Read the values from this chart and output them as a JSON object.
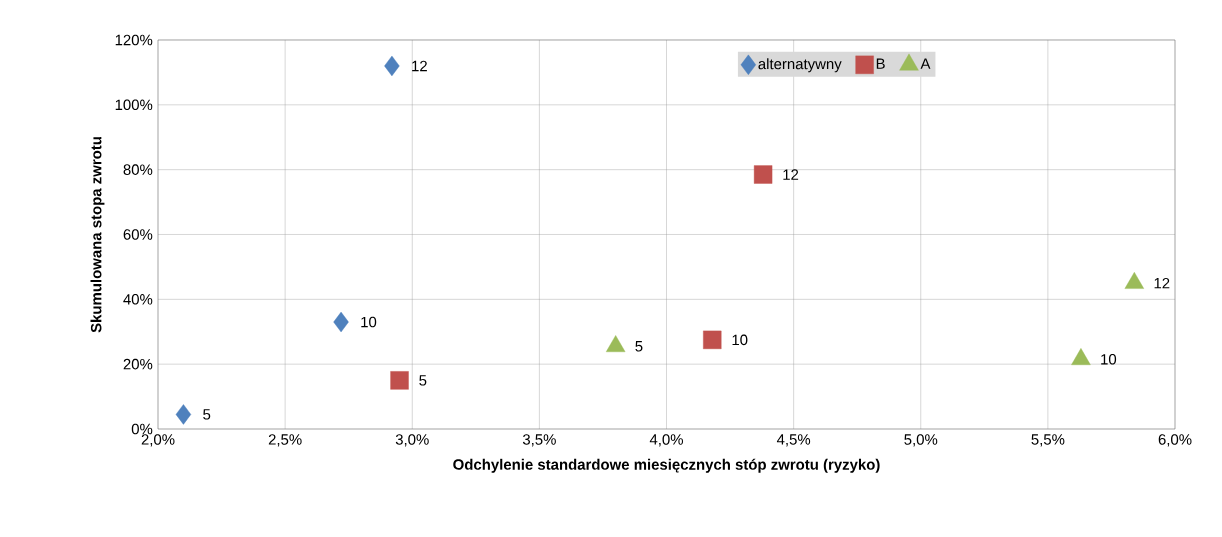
{
  "chart_data": {
    "type": "scatter",
    "xlabel": "Odchylenie standardowe miesięcznych stóp zwrotu (ryzyko)",
    "ylabel": "Skumulowana stopa zwrotu",
    "series": [
      {
        "name": "alternatywny",
        "color": "#4f81bd",
        "marker": "diamond",
        "x": [
          2.1,
          2.72,
          2.92
        ],
        "values": [
          4.5,
          33,
          112
        ]
      },
      {
        "name": "B",
        "color": "#c0504d",
        "marker": "square",
        "x": [
          2.95,
          4.18,
          4.38
        ],
        "values": [
          15,
          27.5,
          78.5
        ]
      },
      {
        "name": "A",
        "color": "#9bbb59",
        "marker": "triangle",
        "x": [
          3.8,
          5.63,
          5.84
        ],
        "values": [
          25.5,
          21.5,
          45
        ]
      }
    ],
    "annotations": [
      {
        "text": "5",
        "x": 2.1,
        "y": 4.5
      },
      {
        "text": "10",
        "x": 2.72,
        "y": 33
      },
      {
        "text": "12",
        "x": 2.92,
        "y": 112
      },
      {
        "text": "5",
        "x": 2.95,
        "y": 15
      },
      {
        "text": "10",
        "x": 4.18,
        "y": 27.5
      },
      {
        "text": "12",
        "x": 4.38,
        "y": 78.5
      },
      {
        "text": "5",
        "x": 3.8,
        "y": 25.5
      },
      {
        "text": "10",
        "x": 5.63,
        "y": 21.5
      },
      {
        "text": "12",
        "x": 5.84,
        "y": 45
      }
    ],
    "xlim": [
      2.0,
      6.0
    ],
    "xticks": [
      {
        "value": 2.0,
        "label": "2,0%"
      },
      {
        "value": 2.5,
        "label": "2,5%"
      },
      {
        "value": 3.0,
        "label": "3,0%"
      },
      {
        "value": 3.5,
        "label": "3,5%"
      },
      {
        "value": 4.0,
        "label": "4,0%"
      },
      {
        "value": 4.5,
        "label": "4,5%"
      },
      {
        "value": 5.0,
        "label": "5,0%"
      },
      {
        "value": 5.5,
        "label": "5,5%"
      },
      {
        "value": 6.0,
        "label": "6,0%"
      }
    ],
    "ylim": [
      0,
      120
    ],
    "yticks": [
      {
        "value": 0,
        "label": "0%"
      },
      {
        "value": 20,
        "label": "20%"
      },
      {
        "value": 40,
        "label": "40%"
      },
      {
        "value": 60,
        "label": "60%"
      },
      {
        "value": 80,
        "label": "80%"
      },
      {
        "value": 100,
        "label": "100%"
      },
      {
        "value": 120,
        "label": "120%"
      }
    ],
    "grid": true,
    "legend": "top right"
  }
}
